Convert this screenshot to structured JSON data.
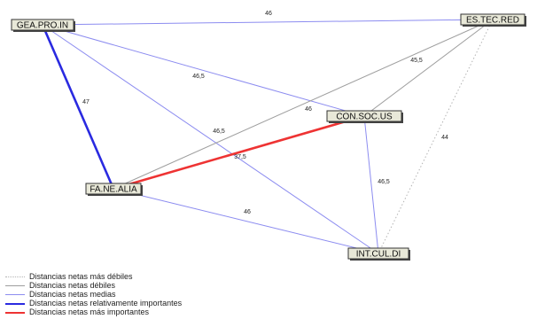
{
  "nodes": [
    {
      "id": "gea",
      "label": "GEA.PRO.IN"
    },
    {
      "id": "es",
      "label": "ES.TEC.RED"
    },
    {
      "id": "con",
      "label": "CON.SOC.US"
    },
    {
      "id": "fa",
      "label": "FA.NE.ALIA"
    },
    {
      "id": "int",
      "label": "INT.CUL.DI"
    }
  ],
  "edges": [
    {
      "from": "gea",
      "to": "es",
      "label": "46",
      "category": "medium"
    },
    {
      "from": "gea",
      "to": "fa",
      "label": "47",
      "category": "relatively_important"
    },
    {
      "from": "gea",
      "to": "con",
      "label": "46,5",
      "category": "medium"
    },
    {
      "from": "gea",
      "to": "int",
      "label": "46,5",
      "category": "medium"
    },
    {
      "from": "es",
      "to": "fa",
      "label": "46",
      "category": "weak"
    },
    {
      "from": "es",
      "to": "con",
      "label": "45,5",
      "category": "weak"
    },
    {
      "from": "es",
      "to": "int",
      "label": "44",
      "category": "weakest"
    },
    {
      "from": "con",
      "to": "fa",
      "label": "37,5",
      "category": "most_important"
    },
    {
      "from": "con",
      "to": "int",
      "label": "46,5",
      "category": "medium"
    },
    {
      "from": "fa",
      "to": "int",
      "label": "46",
      "category": "medium"
    }
  ],
  "legend": [
    {
      "category": "weakest",
      "label": "Distancias netas más débiles",
      "color": "#b4b4b4",
      "style": "dotted"
    },
    {
      "category": "weak",
      "label": "Distancias netas débiles",
      "color": "#9e9e9e",
      "style": "solid"
    },
    {
      "category": "medium",
      "label": "Distancias netas medias",
      "color": "#8c8cf0",
      "style": "solid"
    },
    {
      "category": "relatively_important",
      "label": "Distancias netas relativamente importantes",
      "color": "#2a2ae0",
      "style": "solid-bold"
    },
    {
      "category": "most_important",
      "label": "Distancias netas más importantes",
      "color": "#ee3333",
      "style": "solid-bold"
    }
  ]
}
